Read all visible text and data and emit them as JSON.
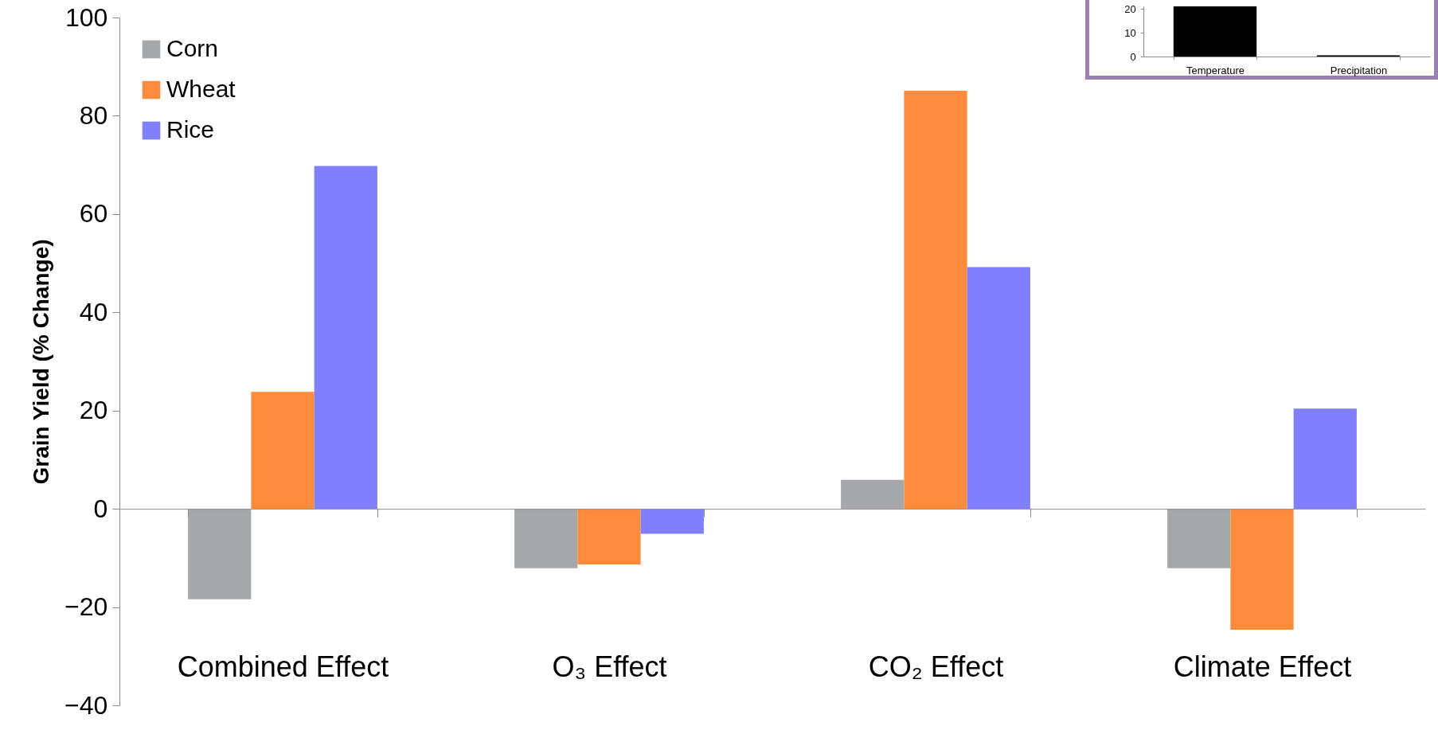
{
  "chart_data": [
    {
      "type": "bar",
      "ylabel": "Grain Yield (% Change)",
      "categories": [
        "Combined Effect",
        "O₃ Effect",
        "CO₂ Effect",
        "Climate Effect"
      ],
      "series": [
        {
          "name": "Corn",
          "color": "#a5a7aa",
          "values": [
            -18.4,
            -12.1,
            5.9,
            -12.1
          ]
        },
        {
          "name": "Wheat",
          "color": "#ff8b3d",
          "values": [
            23.8,
            -11.3,
            85.1,
            -24.6
          ]
        },
        {
          "name": "Rice",
          "color": "#7f7fff",
          "values": [
            69.8,
            -5.1,
            49.2,
            20.4
          ]
        }
      ],
      "ylim": [
        -40,
        100
      ],
      "yticks": [
        -40,
        -20,
        0,
        20,
        40,
        60,
        80,
        100
      ],
      "legend": "top left"
    },
    {
      "type": "bar",
      "categories": [
        "Temperature",
        "Precipitation"
      ],
      "values": [
        21,
        0.5
      ],
      "color": "#000000",
      "ylim": [
        0,
        21
      ],
      "yticks": [
        0,
        10,
        20
      ]
    }
  ]
}
